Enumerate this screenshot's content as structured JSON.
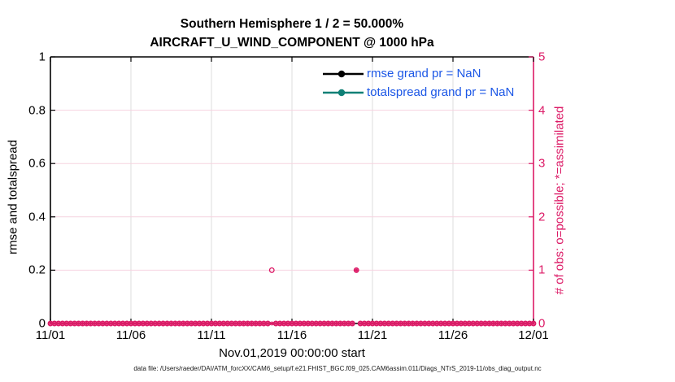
{
  "title": {
    "line1": "Southern Hemisphere 1 / 2 = 50.000%",
    "line2": "AIRCRAFT_U_WIND_COMPONENT @ 1000 hPa"
  },
  "footer": "data file: /Users/raeder/DAI/ATM_forcXX/CAM6_setup/f.e21.FHIST_BGC.f09_025.CAM6assim.011/Diags_NTrS_2019-11/obs_diag_output.nc",
  "colors": {
    "accent_pink": "#DC1A66",
    "grid_pink": "#f6d3e0",
    "grid_gray": "#dcdcdc",
    "legend_text_blue": "#1C57E6",
    "rmse_black": "#000000",
    "totalspread_teal": "#0E8076",
    "axis_black": "#000000"
  },
  "chart_data": {
    "type": "line",
    "title": "Southern Hemisphere 1 / 2 = 50.000% | AIRCRAFT_U_WIND_COMPONENT @ 1000 hPa",
    "xlabel": "Nov.01,2019 00:00:00 start",
    "ylabel_left": "rmse and totalspread",
    "ylabel_right": "# of obs: o=possible; *=assimilated",
    "left_ylim": [
      0,
      1
    ],
    "right_ylim": [
      0,
      5
    ],
    "x_range_days": [
      0,
      30
    ],
    "x_ticks": [
      {
        "day": 0,
        "label": "11/01"
      },
      {
        "day": 5,
        "label": "11/06"
      },
      {
        "day": 10,
        "label": "11/11"
      },
      {
        "day": 15,
        "label": "11/16"
      },
      {
        "day": 20,
        "label": "11/21"
      },
      {
        "day": 25,
        "label": "11/26"
      },
      {
        "day": 30,
        "label": "12/01"
      }
    ],
    "left_ticks": [
      {
        "value": 0,
        "label": "0"
      },
      {
        "value": 0.2,
        "label": "0.2"
      },
      {
        "value": 0.4,
        "label": "0.4"
      },
      {
        "value": 0.6,
        "label": "0.6"
      },
      {
        "value": 0.8,
        "label": "0.8"
      },
      {
        "value": 1,
        "label": "1"
      }
    ],
    "right_ticks": [
      {
        "value": 0,
        "label": "0"
      },
      {
        "value": 1,
        "label": "1"
      },
      {
        "value": 2,
        "label": "2"
      },
      {
        "value": 3,
        "label": "3"
      },
      {
        "value": 4,
        "label": "4"
      },
      {
        "value": 5,
        "label": "5"
      }
    ],
    "series": [
      {
        "name": "rmse grand pr = NaN",
        "color": "#000000",
        "values": "NaN"
      },
      {
        "name": "totalspread grand pr = NaN",
        "color": "#0E8076",
        "values": "NaN"
      }
    ],
    "obs_counts": {
      "axis": "right",
      "time_step_days": 0.25,
      "n_points": 121,
      "possible_default": 0,
      "assimilated_default": 0,
      "exceptions": [
        {
          "day": 13.75,
          "possible": 1,
          "assimilated": 0
        },
        {
          "day": 19.0,
          "possible": 1,
          "assimilated": 1
        }
      ]
    },
    "grid": {
      "vertical": "on (gray, at x ticks)",
      "horizontal": "on (pink, at right-axis ticks)"
    },
    "legend_position": "upper right inside plot, no box"
  }
}
